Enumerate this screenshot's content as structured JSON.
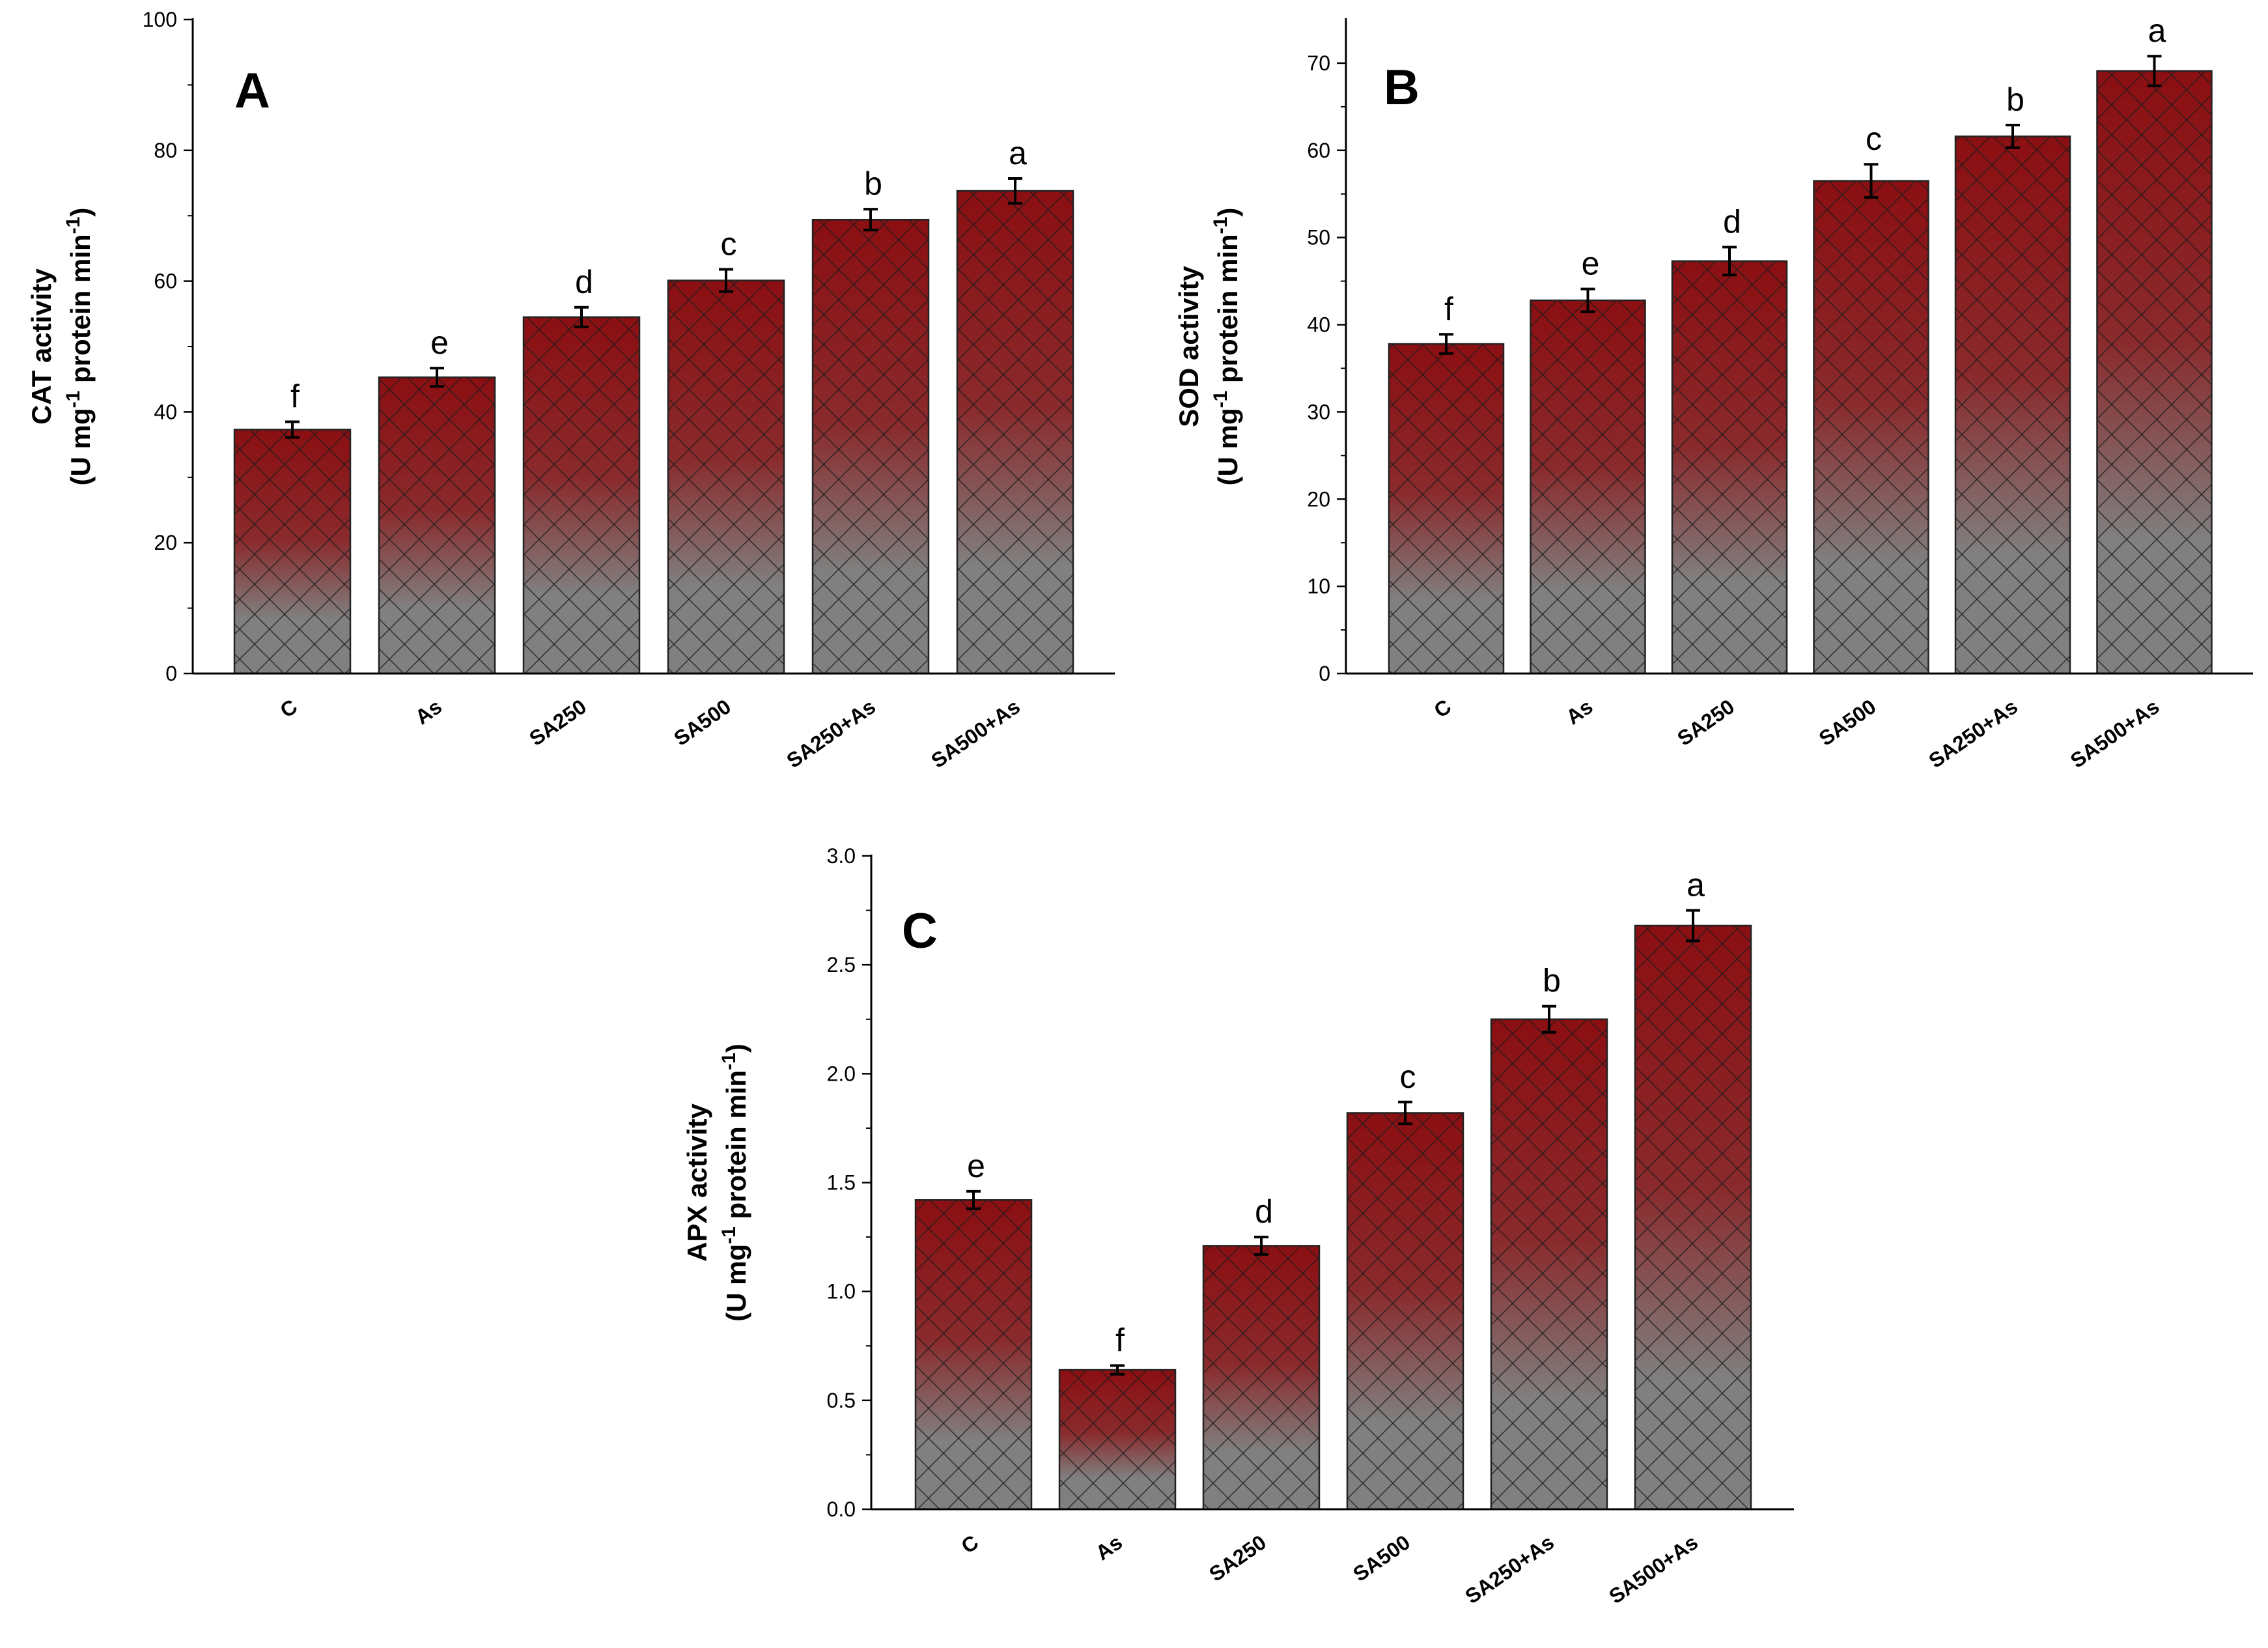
{
  "chart_data": [
    {
      "type": "bar",
      "panel": "A",
      "ylabel_line1": "CAT activity",
      "ylabel_line2": {
        "pre": "(U mg",
        "sup1": "-1",
        "mid": " protein min",
        "sup2": "-1",
        "post": ")"
      },
      "ylim": [
        0,
        100
      ],
      "yticks": [
        0,
        20,
        40,
        60,
        80,
        100
      ],
      "ytick_labels": [
        "0",
        "20",
        "40",
        "60",
        "80",
        "100"
      ],
      "categories": [
        "C",
        "As",
        "SA250",
        "SA500",
        "SA250+As",
        "SA500+As"
      ],
      "values": [
        37.3,
        45.3,
        54.5,
        60.1,
        69.4,
        73.8
      ],
      "errors": [
        1.2,
        1.4,
        1.5,
        1.7,
        1.6,
        1.9
      ],
      "significance": [
        "f",
        "e",
        "d",
        "c",
        "b",
        "a"
      ]
    },
    {
      "type": "bar",
      "panel": "B",
      "ylabel_line1": "SOD activity",
      "ylabel_line2": {
        "pre": "(U mg",
        "sup1": "-1",
        "mid": " protein min",
        "sup2": "-1",
        "post": ")"
      },
      "ylim": [
        0,
        75
      ],
      "yticks": [
        0,
        10,
        20,
        30,
        40,
        50,
        60,
        70
      ],
      "ytick_labels": [
        "0",
        "10",
        "20",
        "30",
        "40",
        "50",
        "60",
        "70"
      ],
      "categories": [
        "C",
        "As",
        "SA250",
        "SA500",
        "SA250+As",
        "SA500+As"
      ],
      "values": [
        37.8,
        42.8,
        47.3,
        56.5,
        61.6,
        69.1
      ],
      "errors": [
        1.1,
        1.3,
        1.6,
        1.9,
        1.3,
        1.7
      ],
      "significance": [
        "f",
        "e",
        "d",
        "c",
        "b",
        "a"
      ]
    },
    {
      "type": "bar",
      "panel": "C",
      "ylabel_line1": "APX activity",
      "ylabel_line2": {
        "pre": "(U mg",
        "sup1": "-1",
        "mid": " protein min",
        "sup2": "-1",
        "post": ")"
      },
      "ylim": [
        0,
        3.0
      ],
      "yticks": [
        0,
        0.5,
        1.0,
        1.5,
        2.0,
        2.5,
        3.0
      ],
      "ytick_labels": [
        "0.0",
        "0.5",
        "1.0",
        "1.5",
        "2.0",
        "2.5",
        "3.0"
      ],
      "categories": [
        "C",
        "As",
        "SA250",
        "SA500",
        "SA250+As",
        "SA500+As"
      ],
      "values": [
        1.42,
        0.64,
        1.21,
        1.82,
        2.25,
        2.68
      ],
      "errors": [
        0.04,
        0.02,
        0.04,
        0.05,
        0.06,
        0.07
      ],
      "significance": [
        "e",
        "f",
        "d",
        "c",
        "b",
        "a"
      ]
    }
  ],
  "colors": {
    "bar_top": "#8b0f12",
    "bar_bottom": "#808080",
    "hatch": "#1a1a1a",
    "axis": "#000000"
  }
}
